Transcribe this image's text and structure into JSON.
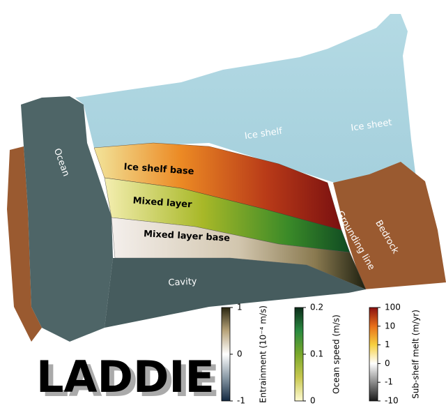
{
  "scene": {
    "labels": {
      "ocean": "Ocean",
      "ice_shelf": "Ice shelf",
      "ice_sheet": "Ice sheet",
      "ice_shelf_base": "Ice shelf base",
      "mixed_layer": "Mixed layer",
      "mixed_layer_base": "Mixed layer base",
      "grounding_line": "Grounding line",
      "bedrock": "Bedrock",
      "cavity": "Cavity"
    }
  },
  "colorbars": [
    {
      "label": "Entrainment (10⁻⁴ m/s)",
      "lim": [
        -1,
        1
      ],
      "ticks": [
        -1,
        0,
        1
      ],
      "scale": "linear",
      "colors": [
        "#132840",
        "#8a9aa6",
        "#ffffff",
        "#b8a47a",
        "#2a2610"
      ]
    },
    {
      "label": "Ocean speed (m/s)",
      "lim": [
        0,
        0.2
      ],
      "ticks": [
        0,
        0.1,
        0.2
      ],
      "scale": "linear",
      "colors": [
        "#fffbd2",
        "#c8c850",
        "#7aa82a",
        "#2a8a40",
        "#0c2c1a"
      ]
    },
    {
      "label": "Sub-shelf melt (m/yr)",
      "lim": [
        -10,
        100
      ],
      "ticks": [
        -10,
        -1,
        0,
        1,
        10,
        100
      ],
      "scale": "symlog",
      "colors": [
        "#1a1a1a",
        "#8c8c8c",
        "#ffffff",
        "#f6d040",
        "#e8701a",
        "#8a1010"
      ]
    }
  ],
  "logo": {
    "text": "LADDIE"
  }
}
